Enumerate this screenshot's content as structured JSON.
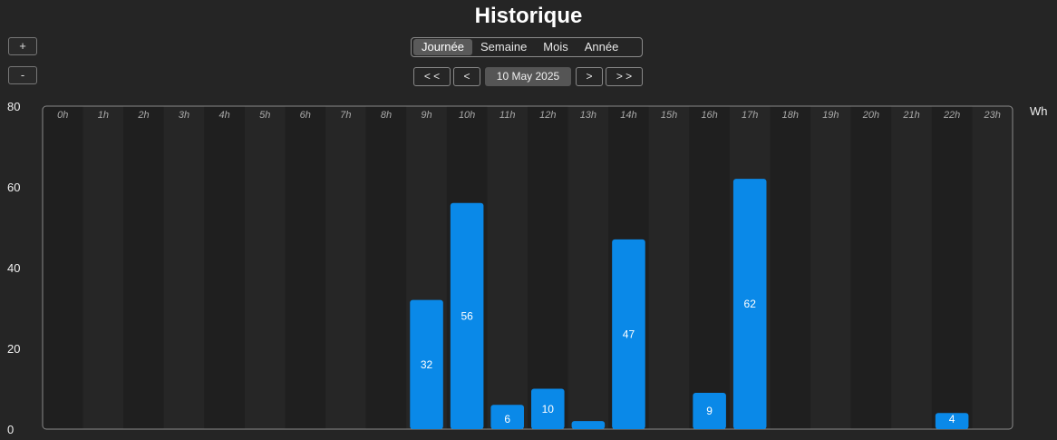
{
  "header": {
    "title": "Historique"
  },
  "zoom": {
    "plus_label": "+",
    "minus_label": "-"
  },
  "tabs": [
    {
      "label": "Journée",
      "active": true
    },
    {
      "label": "Semaine",
      "active": false
    },
    {
      "label": "Mois",
      "active": false
    },
    {
      "label": "Année",
      "active": false
    }
  ],
  "nav": {
    "first_label": "< <",
    "prev_label": "<",
    "date": "10 May 2025",
    "next_label": ">",
    "last_label": "> >"
  },
  "colors": {
    "bar": "#0a89e8",
    "background": "#252525",
    "stripe_dark": "#1f1f1f",
    "stripe_light": "#262626",
    "frame": "#8a8a8a"
  },
  "chart_data": {
    "type": "bar",
    "ylabel": "Wh",
    "ylim": [
      0,
      80
    ],
    "yticks": [
      0,
      20,
      40,
      60,
      80
    ],
    "categories": [
      "0h",
      "1h",
      "2h",
      "3h",
      "4h",
      "5h",
      "6h",
      "7h",
      "8h",
      "9h",
      "10h",
      "11h",
      "12h",
      "13h",
      "14h",
      "15h",
      "16h",
      "17h",
      "18h",
      "19h",
      "20h",
      "21h",
      "22h",
      "23h"
    ],
    "values": [
      0,
      0,
      0,
      0,
      0,
      0,
      0,
      0,
      0,
      32,
      56,
      6,
      10,
      2,
      47,
      0,
      9,
      62,
      0,
      0,
      0,
      0,
      4,
      0
    ],
    "labels": [
      "",
      "",
      "",
      "",
      "",
      "",
      "",
      "",
      "",
      "32",
      "56",
      "6",
      "10",
      "",
      "47",
      "",
      "9",
      "62",
      "",
      "",
      "",
      "",
      "4",
      ""
    ],
    "grid": false,
    "legend": "none"
  }
}
